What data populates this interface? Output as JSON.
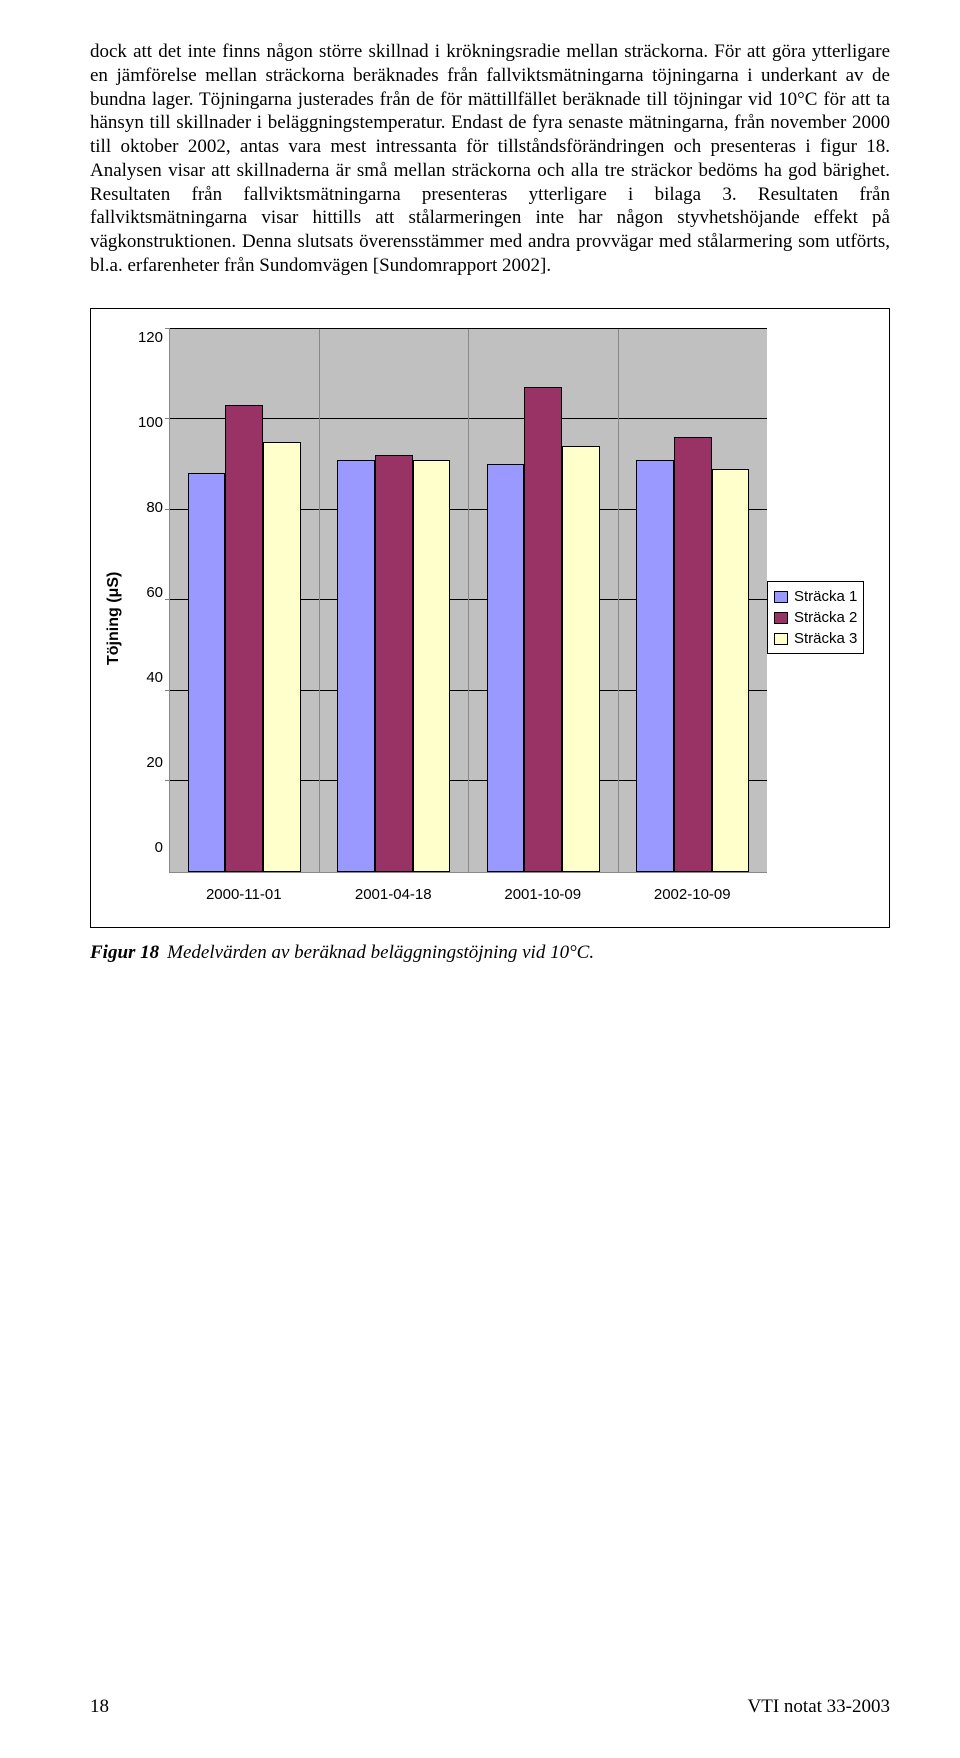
{
  "body_text": "dock att det inte finns någon större skillnad i krökningsradie mellan sträckorna. För att göra ytterligare en jämförelse mellan sträckorna beräknades från fallviktsmätningarna töjningarna i underkant av de bundna lager. Töjningarna justerades från de för mättillfället beräknade till töjningar vid 10°C för att ta hänsyn till skillnader i beläggningstemperatur. Endast de fyra senaste mätningarna, från november 2000 till oktober 2002, antas vara mest intressanta för tillståndsförändringen och presenteras i figur 18. Analysen visar att skillnaderna är små mellan sträckorna och alla tre sträckor bedöms ha god bärighet. Resultaten från fallviktsmätningarna presenteras ytterligare i bilaga 3. Resultaten från fallviktsmätningarna visar hittills att stålarmeringen inte har någon styvhetshöjande effekt på vägkonstruktionen. Denna slutsats överensstämmer med andra provvägar med stålarmering som utförts, bl.a. erfarenheter från Sundomvägen [Sundomrapport 2002].",
  "chart": {
    "type": "bar",
    "ylabel": "Töjning (μS)",
    "ylim_max": 120,
    "ytick_step": 20,
    "yticks": [
      "0",
      "20",
      "40",
      "60",
      "80",
      "100",
      "120"
    ],
    "background_color": "#c0c0c0",
    "grid_color": "#000000",
    "categories": [
      "2000-11-01",
      "2001-04-18",
      "2001-10-09",
      "2002-10-09"
    ],
    "series": [
      {
        "label": "Sträcka 1",
        "color": "#9999ff",
        "values": [
          88,
          91,
          90,
          91
        ]
      },
      {
        "label": "Sträcka 2",
        "color": "#993366",
        "values": [
          103,
          92,
          107,
          96
        ]
      },
      {
        "label": "Sträcka 3",
        "color": "#ffffcc",
        "values": [
          95,
          91,
          94,
          89
        ]
      }
    ],
    "label_fontfamily": "Arial",
    "label_fontsize": 15,
    "ylabel_fontsize": 16,
    "ylabel_fontweight": "bold",
    "bar_border_color": "#000000"
  },
  "caption": {
    "lead": "Figur 18",
    "rest": "Medelvärden av beräknad beläggningstöjning vid 10°C."
  },
  "footer": {
    "page_number": "18",
    "doc_id": "VTI notat 33-2003"
  }
}
